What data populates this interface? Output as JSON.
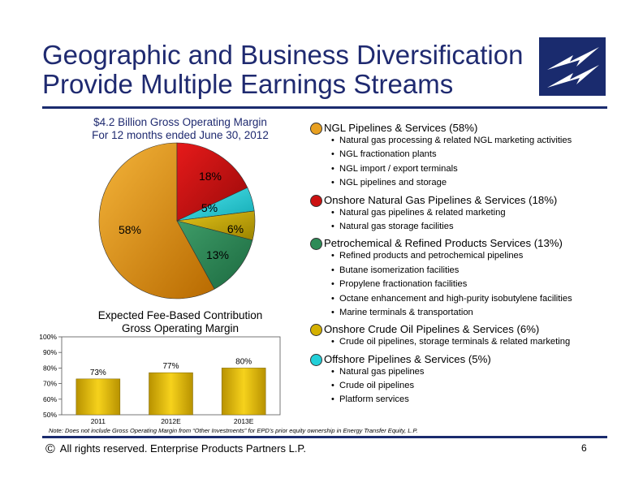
{
  "title_line1": "Geographic and Business Diversification",
  "title_line2": "Provide Multiple Earnings Streams",
  "pie_title_line1": "$4.2 Billion Gross Operating Margin",
  "pie_title_line2": "For 12 months ended June 30, 2012",
  "bar_title_line1": "Expected Fee-Based Contribution",
  "bar_title_line2": "Gross Operating Margin",
  "segments": [
    {
      "label": "NGL Pipelines & Services (58%)",
      "color": "#e8a020",
      "items": [
        "Natural gas processing & related NGL marketing activities",
        "NGL fractionation plants",
        "NGL import / export terminals",
        "NGL pipelines and storage"
      ]
    },
    {
      "label": "Onshore Natural Gas Pipelines & Services (18%)",
      "color": "#cc1111",
      "items": [
        "Natural gas pipelines & related marketing",
        "Natural gas storage facilities"
      ]
    },
    {
      "label": "Petrochemical & Refined Products Services (13%)",
      "color": "#2e8b57",
      "items": [
        "Refined products and petrochemical pipelines",
        "Butane isomerization facilities",
        "Propylene fractionation facilities",
        "Octane enhancement and high-purity isobutylene facilities",
        "Marine terminals & transportation"
      ]
    },
    {
      "label": "Onshore Crude Oil Pipelines & Services (6%)",
      "color": "#d4b000",
      "items": [
        "Crude oil pipelines, storage terminals & related marketing"
      ]
    },
    {
      "label": "Offshore Pipelines & Services (5%)",
      "color": "#22cfd8",
      "items": [
        "Natural gas pipelines",
        "Crude oil pipelines",
        "Platform services"
      ]
    }
  ],
  "note": "Note:  Does not include Gross Operating Margin from “Other Investments” for EPD’s prior equity ownership in Energy Transfer Equity, L.P.",
  "footer_symbol": "©",
  "footer": "All rights reserved. Enterprise Products Partners L.P.",
  "page_number": "6",
  "colors": {
    "brand_navy": "#1a2b6e"
  },
  "chart_data": [
    {
      "type": "pie",
      "title": "$4.2 Billion Gross Operating Margin For 12 months ended June 30, 2012",
      "labels": [
        "58%",
        "18%",
        "5%",
        "6%",
        "13%"
      ],
      "values": [
        58,
        18,
        5,
        6,
        13
      ],
      "colors": [
        "#e8a020",
        "#cc1111",
        "#22cfd8",
        "#d4b000",
        "#2e8b57"
      ]
    },
    {
      "type": "bar",
      "title": "Expected Fee-Based Contribution Gross Operating Margin",
      "categories": [
        "2011",
        "2012E",
        "2013E"
      ],
      "values": [
        73,
        77,
        80
      ],
      "value_labels": [
        "73%",
        "77%",
        "80%"
      ],
      "yticks": [
        "50%",
        "60%",
        "70%",
        "80%",
        "90%",
        "100%"
      ],
      "ylim": [
        50,
        100
      ],
      "xlabel": "",
      "ylabel": "",
      "grid": false
    }
  ]
}
